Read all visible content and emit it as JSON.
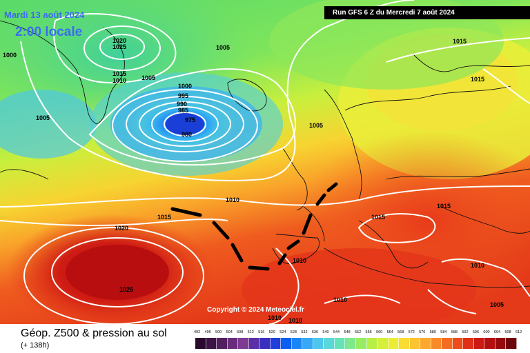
{
  "header": {
    "date": "Mardi 13 août 2024",
    "time": "2:00 locale",
    "run": "Run GFS 6 Z du Mercredi 7 août 2024"
  },
  "copyright": "Copyright © 2024 Meteociel.fr",
  "footer": {
    "title": "Géop. Z500 & pression au sol",
    "subtitle": "(+ 138h)"
  },
  "isobars": {
    "l1": "1000",
    "l2": "1020",
    "l3": "1025",
    "l4": "1005",
    "l5": "1005",
    "l6": "1015",
    "l7": "1010",
    "l8": "1005",
    "l9": "1000",
    "l10": "995",
    "l11": "990",
    "l12": "985",
    "l13": "975",
    "l14": "980",
    "l15": "1005",
    "l16": "1015",
    "l17": "1015",
    "l18": "1010",
    "l19": "1015",
    "l20": "1020",
    "l21": "1025",
    "l22": "1015",
    "l23": "1015",
    "l24": "1010",
    "l25": "1010",
    "l26": "1010",
    "l27": "1010",
    "l28": "1010",
    "l29": "1005"
  },
  "scale": {
    "labels": [
      "492",
      "496",
      "500",
      "504",
      "508",
      "512",
      "516",
      "520",
      "524",
      "528",
      "532",
      "536",
      "540",
      "544",
      "548",
      "552",
      "556",
      "560",
      "564",
      "568",
      "572",
      "576",
      "580",
      "584",
      "588",
      "592",
      "596",
      "600",
      "604",
      "608",
      "612"
    ],
    "colors": [
      "#2b0a2f",
      "#3d1446",
      "#521f5f",
      "#6a2c7a",
      "#7e3b94",
      "#5a2fa8",
      "#3b2fc0",
      "#1f3fd8",
      "#0a5ef0",
      "#1a86f5",
      "#35a9f3",
      "#4cc6ec",
      "#5ad8d9",
      "#66e3b6",
      "#7de88c",
      "#98ec62",
      "#b7ef45",
      "#d4f03a",
      "#ecec36",
      "#f9dc34",
      "#fcc431",
      "#fca82d",
      "#f98a28",
      "#f46b22",
      "#ec4b1c",
      "#e02f17",
      "#cc1a13",
      "#b40f10",
      "#96090c",
      "#6e0508"
    ],
    "legend_note": ""
  }
}
